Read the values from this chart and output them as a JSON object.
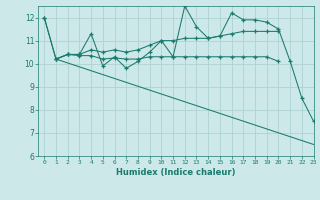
{
  "xlabel": "Humidex (Indice chaleur)",
  "xlim": [
    -0.5,
    23
  ],
  "ylim": [
    6,
    12.5
  ],
  "yticks": [
    6,
    7,
    8,
    9,
    10,
    11,
    12
  ],
  "xticks": [
    0,
    1,
    2,
    3,
    4,
    5,
    6,
    7,
    8,
    9,
    10,
    11,
    12,
    13,
    14,
    15,
    16,
    17,
    18,
    19,
    20,
    21,
    22,
    23
  ],
  "line_color": "#1a7a6e",
  "bg_color": "#cce8e8",
  "grid_color": "#aacece",
  "series": {
    "line1_x": [
      0,
      1,
      2,
      3,
      4,
      5,
      6,
      7,
      8,
      9,
      10,
      11,
      12,
      13,
      14,
      15,
      16,
      17,
      18,
      19,
      20,
      21,
      22,
      23
    ],
    "line1_y": [
      12.0,
      10.2,
      10.4,
      10.4,
      11.3,
      9.9,
      10.3,
      9.8,
      10.1,
      10.5,
      11.0,
      10.3,
      12.5,
      11.6,
      11.1,
      11.2,
      12.2,
      11.9,
      11.9,
      11.8,
      11.5,
      10.1,
      8.5,
      7.5
    ],
    "line2_x": [
      0,
      1,
      2,
      3,
      4,
      5,
      6,
      7,
      8,
      9,
      10,
      11,
      12,
      13,
      14,
      15,
      16,
      17,
      18,
      19,
      20
    ],
    "line2_y": [
      12.0,
      10.2,
      10.4,
      10.4,
      10.6,
      10.5,
      10.6,
      10.5,
      10.6,
      10.8,
      11.0,
      11.0,
      11.1,
      11.1,
      11.1,
      11.2,
      11.3,
      11.4,
      11.4,
      11.4,
      11.4
    ],
    "line3_x": [
      1,
      2,
      3,
      4,
      5,
      6,
      7,
      8,
      9,
      10,
      11,
      12,
      13,
      14,
      15,
      16,
      17,
      18,
      19,
      20
    ],
    "line3_y": [
      10.2,
      10.4,
      10.35,
      10.35,
      10.2,
      10.25,
      10.2,
      10.2,
      10.3,
      10.3,
      10.3,
      10.3,
      10.3,
      10.3,
      10.3,
      10.3,
      10.3,
      10.3,
      10.3,
      10.1
    ],
    "line4_x": [
      1,
      23
    ],
    "line4_y": [
      10.2,
      6.5
    ]
  }
}
